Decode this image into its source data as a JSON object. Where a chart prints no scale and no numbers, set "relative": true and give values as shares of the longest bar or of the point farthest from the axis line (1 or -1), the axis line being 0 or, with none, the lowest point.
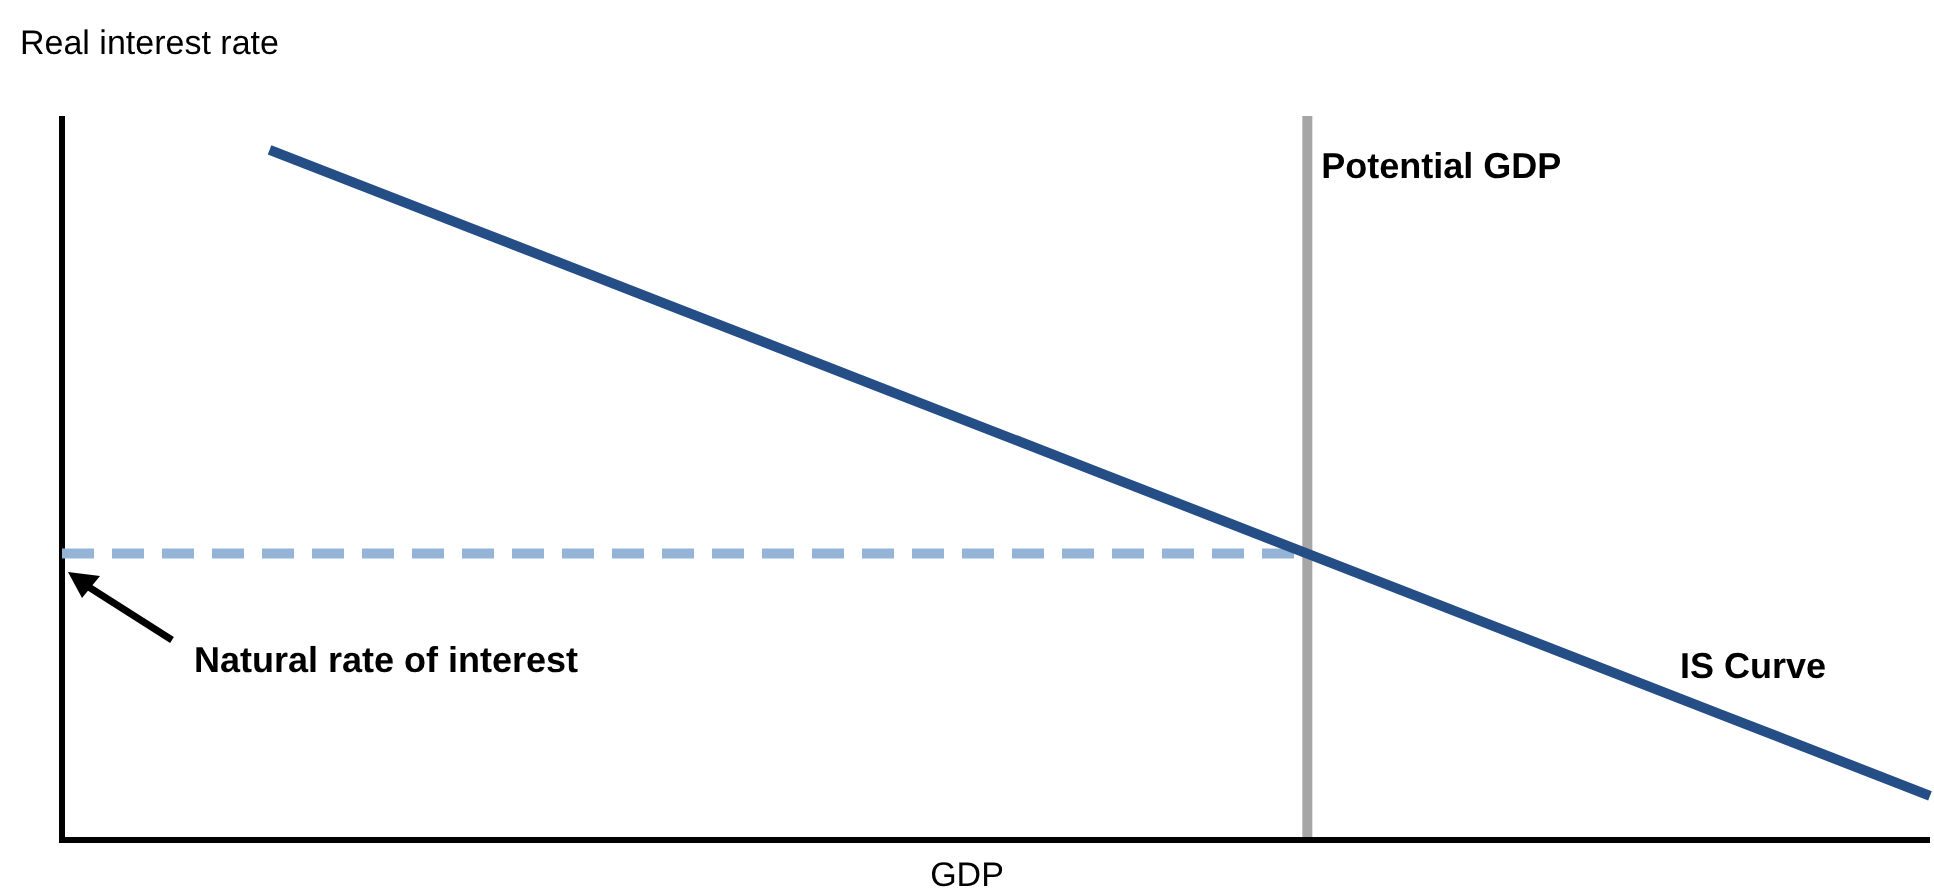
{
  "chart_data": {
    "type": "line",
    "relative": true,
    "xlabel": "GDP",
    "ylabel": "Real interest rate",
    "marker": "none",
    "legend": false,
    "categories": [
      null,
      null,
      null,
      null,
      null,
      null,
      null,
      null,
      null,
      null
    ],
    "series": [
      {
        "name": "IS Curve",
        "color": "#254e87",
        "values": [
          null,
          1,
          0.883,
          0.766,
          0.649,
          0.532,
          0.415,
          0.298,
          0.181,
          0.064
        ]
      },
      {
        "color": "#95b3d7",
        "line_style": "dashed",
        "values": [
          0.415,
          0.415,
          0.415,
          0.415,
          0.415,
          0.415,
          0.415,
          null,
          null,
          null
        ]
      }
    ],
    "annotations": [
      "Natural rate of interest",
      "Potential GDP"
    ]
  }
}
